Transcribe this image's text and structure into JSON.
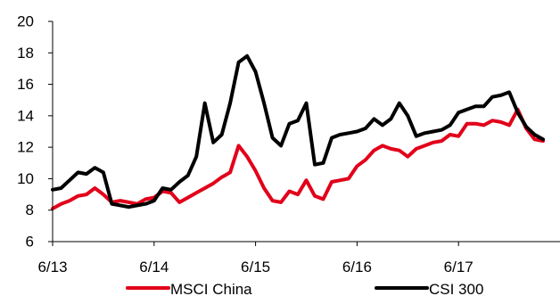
{
  "chart_data": {
    "type": "line",
    "title": "",
    "xlabel": "",
    "ylabel": "",
    "ylim": [
      6,
      20
    ],
    "yticks": [
      6,
      8,
      10,
      12,
      14,
      16,
      18,
      20
    ],
    "x_range": [
      "2013-06",
      "2018-06"
    ],
    "xticks": [
      {
        "label": "6/13",
        "x": "2013-06"
      },
      {
        "label": "6/14",
        "x": "2014-06"
      },
      {
        "label": "6/15",
        "x": "2015-06"
      },
      {
        "label": "6/16",
        "x": "2016-06"
      },
      {
        "label": "6/17",
        "x": "2017-06"
      }
    ],
    "grid": false,
    "legend_position": "bottom",
    "series": [
      {
        "name": "MSCI China",
        "color": "#e2001a",
        "points": [
          [
            "2013-06",
            8.1
          ],
          [
            "2013-07",
            8.4
          ],
          [
            "2013-08",
            8.6
          ],
          [
            "2013-09",
            8.9
          ],
          [
            "2013-10",
            9.0
          ],
          [
            "2013-11",
            9.4
          ],
          [
            "2013-12",
            9.0
          ],
          [
            "2014-01",
            8.5
          ],
          [
            "2014-02",
            8.6
          ],
          [
            "2014-03",
            8.5
          ],
          [
            "2014-04",
            8.4
          ],
          [
            "2014-05",
            8.7
          ],
          [
            "2014-06",
            8.8
          ],
          [
            "2014-07",
            9.2
          ],
          [
            "2014-08",
            9.1
          ],
          [
            "2014-09",
            8.5
          ],
          [
            "2014-10",
            8.8
          ],
          [
            "2014-11",
            9.1
          ],
          [
            "2014-12",
            9.4
          ],
          [
            "2015-01",
            9.7
          ],
          [
            "2015-02",
            10.1
          ],
          [
            "2015-03",
            10.4
          ],
          [
            "2015-04",
            12.1
          ],
          [
            "2015-05",
            11.4
          ],
          [
            "2015-06",
            10.5
          ],
          [
            "2015-07",
            9.4
          ],
          [
            "2015-08",
            8.6
          ],
          [
            "2015-09",
            8.5
          ],
          [
            "2015-10",
            9.2
          ],
          [
            "2015-11",
            9.0
          ],
          [
            "2015-12",
            9.9
          ],
          [
            "2016-01",
            8.9
          ],
          [
            "2016-02",
            8.7
          ],
          [
            "2016-03",
            9.8
          ],
          [
            "2016-04",
            9.9
          ],
          [
            "2016-05",
            10.0
          ],
          [
            "2016-06",
            10.8
          ],
          [
            "2016-07",
            11.2
          ],
          [
            "2016-08",
            11.8
          ],
          [
            "2016-09",
            12.1
          ],
          [
            "2016-10",
            11.9
          ],
          [
            "2016-11",
            11.8
          ],
          [
            "2016-12",
            11.4
          ],
          [
            "2017-01",
            11.9
          ],
          [
            "2017-02",
            12.1
          ],
          [
            "2017-03",
            12.3
          ],
          [
            "2017-04",
            12.4
          ],
          [
            "2017-05",
            12.8
          ],
          [
            "2017-06",
            12.7
          ],
          [
            "2017-07",
            13.5
          ],
          [
            "2017-08",
            13.5
          ],
          [
            "2017-09",
            13.4
          ],
          [
            "2017-10",
            13.7
          ],
          [
            "2017-11",
            13.6
          ],
          [
            "2017-12",
            13.4
          ],
          [
            "2018-01",
            14.4
          ],
          [
            "2018-02",
            13.2
          ],
          [
            "2018-03",
            12.5
          ],
          [
            "2018-04",
            12.4
          ]
        ]
      },
      {
        "name": "CSI 300",
        "color": "#000000",
        "points": [
          [
            "2013-06",
            9.3
          ],
          [
            "2013-07",
            9.4
          ],
          [
            "2013-08",
            9.9
          ],
          [
            "2013-09",
            10.4
          ],
          [
            "2013-10",
            10.3
          ],
          [
            "2013-11",
            10.7
          ],
          [
            "2013-12",
            10.4
          ],
          [
            "2014-01",
            8.4
          ],
          [
            "2014-02",
            8.3
          ],
          [
            "2014-03",
            8.2
          ],
          [
            "2014-04",
            8.3
          ],
          [
            "2014-05",
            8.4
          ],
          [
            "2014-06",
            8.6
          ],
          [
            "2014-07",
            9.4
          ],
          [
            "2014-08",
            9.3
          ],
          [
            "2014-09",
            9.8
          ],
          [
            "2014-10",
            10.2
          ],
          [
            "2014-11",
            11.4
          ],
          [
            "2014-12",
            14.8
          ],
          [
            "2015-01",
            12.3
          ],
          [
            "2015-02",
            12.8
          ],
          [
            "2015-03",
            14.8
          ],
          [
            "2015-04",
            17.4
          ],
          [
            "2015-05",
            17.8
          ],
          [
            "2015-06",
            16.8
          ],
          [
            "2015-07",
            14.8
          ],
          [
            "2015-08",
            12.6
          ],
          [
            "2015-09",
            12.1
          ],
          [
            "2015-10",
            13.5
          ],
          [
            "2015-11",
            13.7
          ],
          [
            "2015-12",
            14.8
          ],
          [
            "2016-01",
            10.9
          ],
          [
            "2016-02",
            11.0
          ],
          [
            "2016-03",
            12.6
          ],
          [
            "2016-04",
            12.8
          ],
          [
            "2016-05",
            12.9
          ],
          [
            "2016-06",
            13.0
          ],
          [
            "2016-07",
            13.2
          ],
          [
            "2016-08",
            13.8
          ],
          [
            "2016-09",
            13.4
          ],
          [
            "2016-10",
            13.8
          ],
          [
            "2016-11",
            14.8
          ],
          [
            "2016-12",
            14.0
          ],
          [
            "2017-01",
            12.7
          ],
          [
            "2017-02",
            12.9
          ],
          [
            "2017-03",
            13.0
          ],
          [
            "2017-04",
            13.1
          ],
          [
            "2017-05",
            13.4
          ],
          [
            "2017-06",
            14.2
          ],
          [
            "2017-07",
            14.4
          ],
          [
            "2017-08",
            14.6
          ],
          [
            "2017-09",
            14.6
          ],
          [
            "2017-10",
            15.2
          ],
          [
            "2017-11",
            15.3
          ],
          [
            "2017-12",
            15.5
          ],
          [
            "2018-01",
            14.2
          ],
          [
            "2018-02",
            13.3
          ],
          [
            "2018-03",
            12.8
          ],
          [
            "2018-04",
            12.5
          ]
        ]
      }
    ]
  }
}
